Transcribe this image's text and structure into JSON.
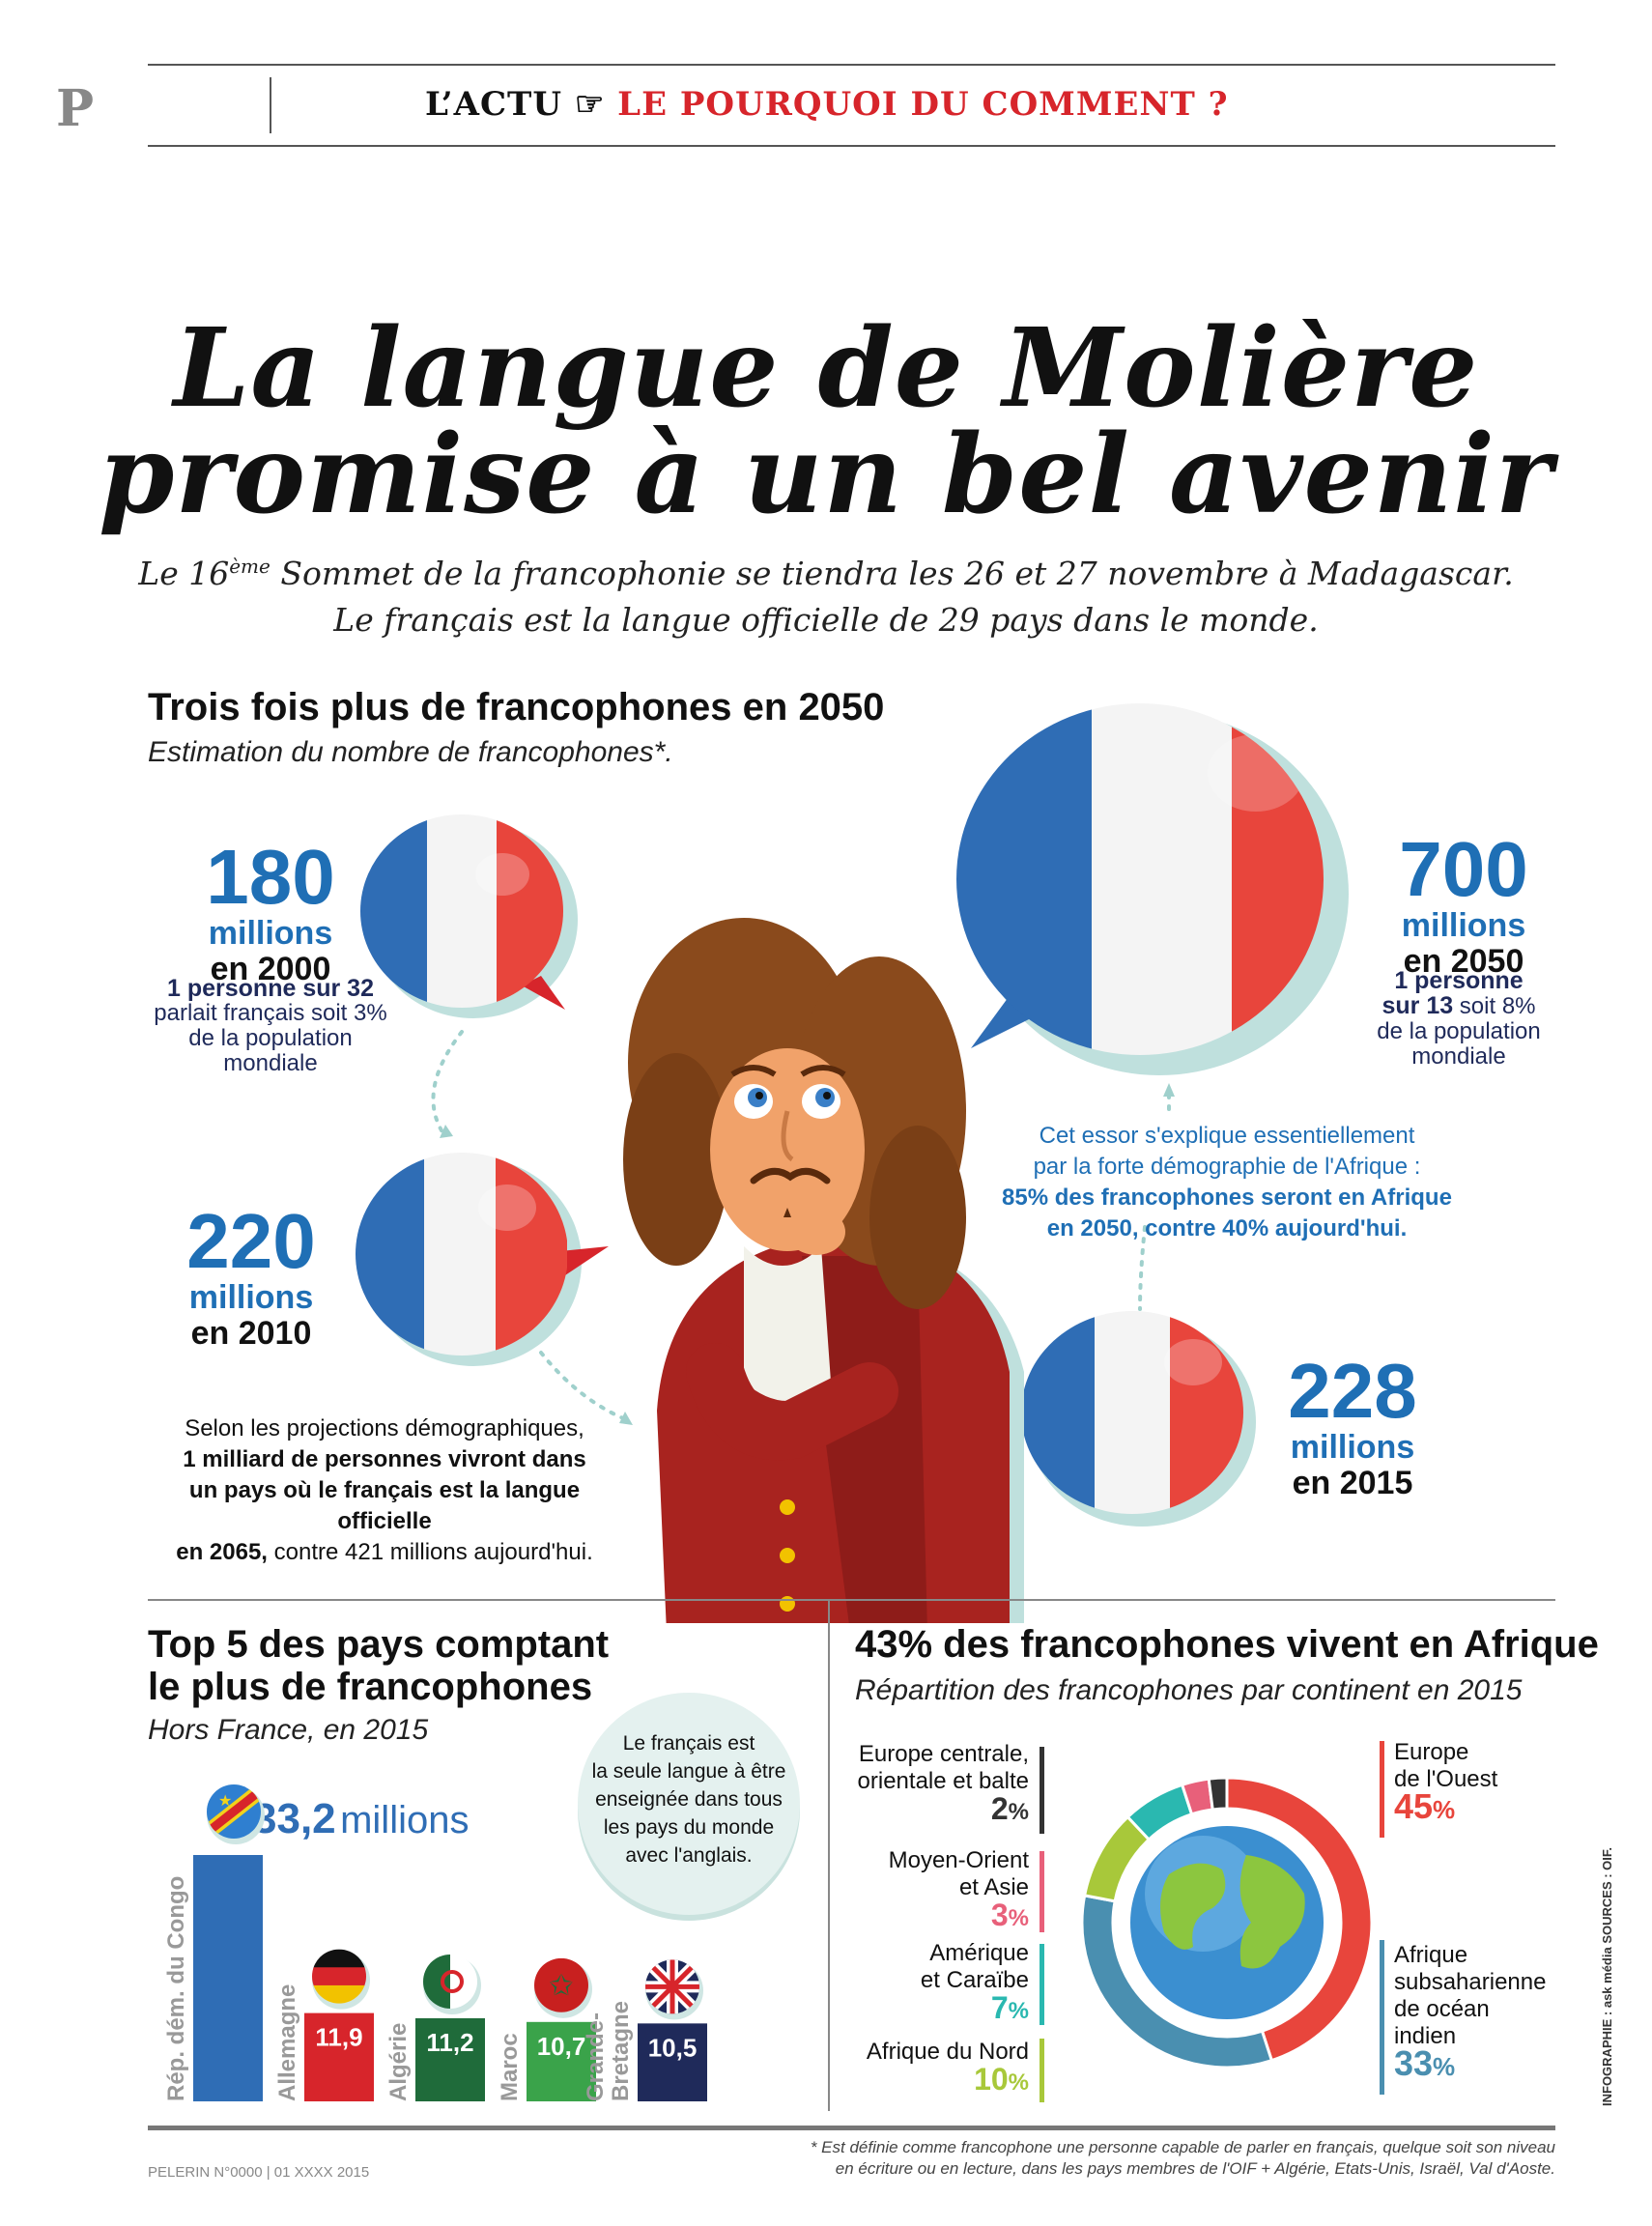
{
  "header": {
    "logo": "P",
    "rubric_left": "L’ACTU",
    "rubric_icon": "pointing-hand-icon",
    "rubric_right": "LE POURQUOI DU COMMENT ?"
  },
  "title": {
    "line1": "La langue de Molière",
    "line2": "promise à un bel avenir"
  },
  "subtitle": {
    "line1_pre": "Le 16",
    "line1_sup": "ème",
    "line1_post": " Sommet de la francophonie se tiendra les 26 et 27 novembre à Madagascar.",
    "line2": "Le français est la langue officielle de 29 pays dans le monde."
  },
  "section1": {
    "title": "Trois fois plus de francophones en 2050",
    "subtitle": "Estimation du nombre de francophones*.",
    "bubbles": [
      {
        "number": "180",
        "unit": "millions",
        "year": "en 2000",
        "note_bold": "1 personne sur 32",
        "note": "parlait français soit 3% de la population mondiale"
      },
      {
        "number": "220",
        "unit": "millions",
        "year": "en 2010"
      },
      {
        "number": "228",
        "unit": "millions",
        "year": "en 2015"
      },
      {
        "number": "700",
        "unit": "millions",
        "year": "en 2050",
        "note_bold_1": "1 personne",
        "note_bold_2": "sur 13",
        "note_2": " soit 8%",
        "note": "de la population mondiale"
      }
    ],
    "essor": {
      "line1": "Cet essor s'explique essentiellement",
      "line2": "par la forte démographie de l'Afrique :",
      "line3": "85% des francophones seront en Afrique",
      "line4": "en 2050, contre 40% aujourd'hui."
    },
    "projection": {
      "line1": "Selon les projections démographiques,",
      "line2": "1 milliard de personnes vivront dans",
      "line3": "un pays où le français est la langue officielle",
      "line4_bold": "en 2065,",
      "line4": " contre 421 millions aujourd'hui."
    }
  },
  "section2": {
    "title_line1": "Top 5 des pays comptant",
    "title_line2": "le plus de francophones",
    "subtitle": "Hors France, en 2015",
    "bubble_text": [
      "Le français est",
      "la seule langue à être",
      "enseignée dans tous",
      "les pays du monde",
      "avec l'anglais."
    ],
    "top_value": "33,2",
    "top_unit": "millions",
    "chart_data": {
      "type": "bar",
      "categories": [
        "Rép. dém. du Congo",
        "Allemagne",
        "Algérie",
        "Maroc",
        "Grande-Bretagne"
      ],
      "values": [
        33.2,
        11.9,
        11.2,
        10.7,
        10.5
      ],
      "value_labels": [
        "33,2",
        "11,9",
        "11,2",
        "10,7",
        "10,5"
      ],
      "colors": [
        "#2f6db5",
        "#d7252b",
        "#1f6b3a",
        "#3aa34a",
        "#1f2a5a"
      ],
      "flags": [
        "flag-drc-icon",
        "flag-germany-icon",
        "flag-algeria-icon",
        "flag-morocco-icon",
        "flag-uk-icon"
      ]
    }
  },
  "section3": {
    "title": "43% des francophones vivent en Afrique",
    "subtitle": "Répartition des francophones par continent en 2015",
    "chart_data": {
      "type": "pie",
      "categories": [
        "Europe de l'Ouest",
        "Afrique subsaharienne de océan indien",
        "Afrique du Nord",
        "Amérique et Caraïbe",
        "Moyen-Orient et Asie",
        "Europe centrale, orientale et balte"
      ],
      "values": [
        45,
        33,
        10,
        7,
        3,
        2
      ],
      "colors": [
        "#e8453c",
        "#4a8fb0",
        "#a8c83a",
        "#2ab8b0",
        "#e8607a",
        "#333333"
      ]
    },
    "labels": {
      "europe_c_1": "Europe centrale,",
      "europe_c_2": "orientale et balte",
      "europe_c_pct": "2",
      "moyen_1": "Moyen-Orient",
      "moyen_2": "et Asie",
      "moyen_pct": "3",
      "amerique_1": "Amérique",
      "amerique_2": "et Caraïbe",
      "amerique_pct": "7",
      "afn_1": "Afrique du Nord",
      "afn_pct": "10",
      "eur_o_1": "Europe",
      "eur_o_2": "de l'Ouest",
      "eur_o_pct": "45",
      "afs_1": "Afrique",
      "afs_2": "subsaharienne",
      "afs_3": "de océan",
      "afs_4": "indien",
      "afs_pct": "33",
      "pct_sign": "%"
    },
    "credit": "INFOGRAPHIE : ask média SOURCES : OIF."
  },
  "footer": {
    "left": "PELERIN N°0000 | 01 XXXX 2015",
    "note_line1": "* Est définie comme francophone une personne capable de parler en français, quelque soit son niveau",
    "note_line2": "en écriture ou en lecture, dans les pays membres de l'OIF + Algérie, Etats-Unis, Israël, Val d'Aoste."
  },
  "colors": {
    "accent_red": "#d7252b",
    "accent_blue": "#1f6fb5",
    "navy": "#1f2a5a"
  }
}
